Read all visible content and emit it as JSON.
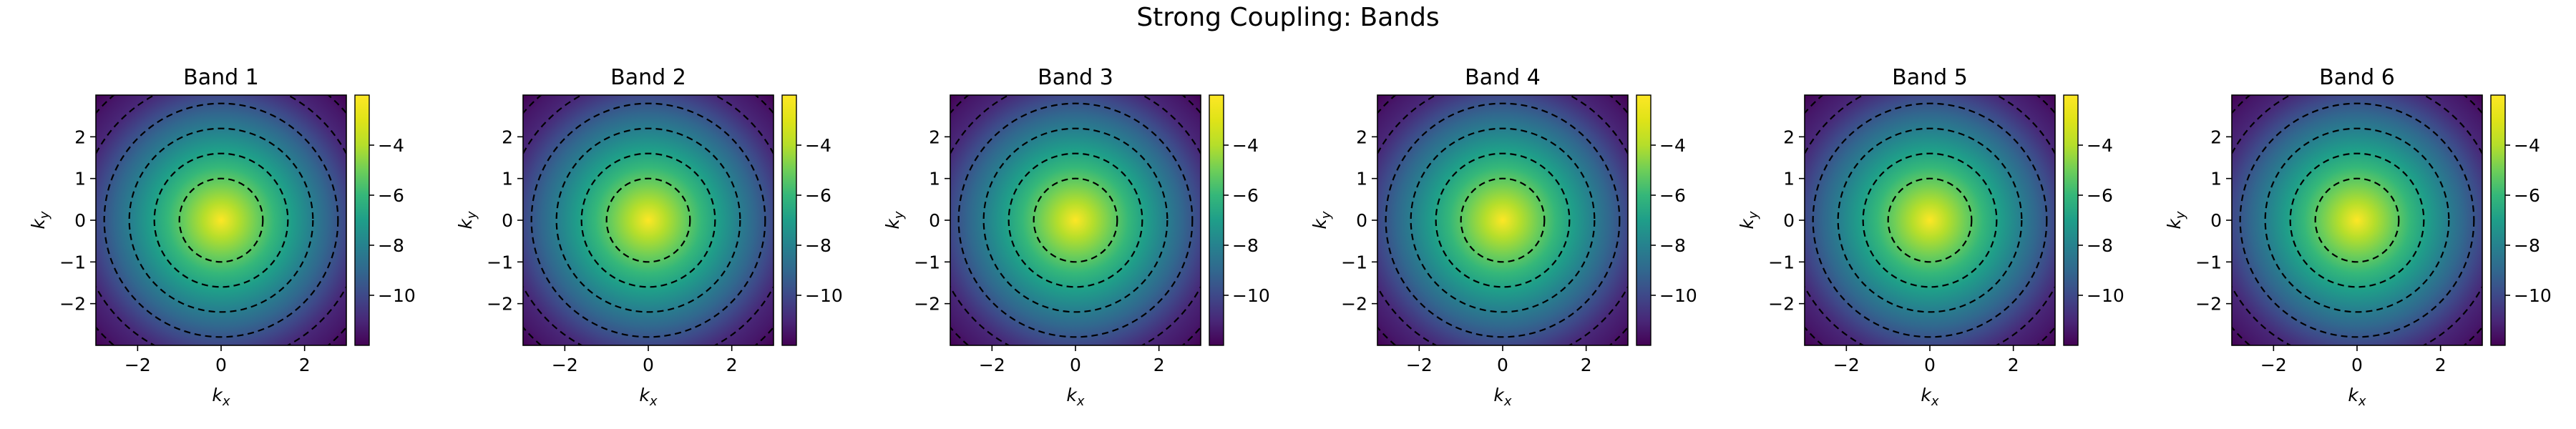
{
  "figure": {
    "suptitle": "Strong Coupling: Bands"
  },
  "chart_data": {
    "type": "heatmap",
    "title": "Strong Coupling: Bands",
    "colormap": "viridis",
    "contour_style": "black dashed",
    "panels": [
      {
        "title": "Band 1",
        "xlabel": "k",
        "xlabel_sub": "x",
        "ylabel": "k",
        "ylabel_sub": "y",
        "xlim": [
          -3,
          3
        ],
        "ylim": [
          -3,
          3
        ],
        "xticks": [
          -2,
          0,
          2
        ],
        "yticks": [
          -2,
          -1,
          0,
          1,
          2
        ],
        "zmin": -12,
        "zmax": -2,
        "colorbar_ticks": [
          -4,
          -6,
          -8,
          -10
        ],
        "contour_radii": [
          1.0,
          1.6,
          2.2,
          2.8,
          3.4,
          3.95
        ]
      },
      {
        "title": "Band 2",
        "xlabel": "k",
        "xlabel_sub": "x",
        "ylabel": "k",
        "ylabel_sub": "y",
        "xlim": [
          -3,
          3
        ],
        "ylim": [
          -3,
          3
        ],
        "xticks": [
          -2,
          0,
          2
        ],
        "yticks": [
          -2,
          -1,
          0,
          1,
          2
        ],
        "zmin": -12,
        "zmax": -2,
        "colorbar_ticks": [
          -4,
          -6,
          -8,
          -10
        ],
        "contour_radii": [
          1.0,
          1.6,
          2.2,
          2.8,
          3.4,
          3.95
        ]
      },
      {
        "title": "Band 3",
        "xlabel": "k",
        "xlabel_sub": "x",
        "ylabel": "k",
        "ylabel_sub": "y",
        "xlim": [
          -3,
          3
        ],
        "ylim": [
          -3,
          3
        ],
        "xticks": [
          -2,
          0,
          2
        ],
        "yticks": [
          -2,
          -1,
          0,
          1,
          2
        ],
        "zmin": -12,
        "zmax": -2,
        "colorbar_ticks": [
          -4,
          -6,
          -8,
          -10
        ],
        "contour_radii": [
          1.0,
          1.6,
          2.2,
          2.8,
          3.4,
          3.95
        ]
      },
      {
        "title": "Band 4",
        "xlabel": "k",
        "xlabel_sub": "x",
        "ylabel": "k",
        "ylabel_sub": "y",
        "xlim": [
          -3,
          3
        ],
        "ylim": [
          -3,
          3
        ],
        "xticks": [
          -2,
          0,
          2
        ],
        "yticks": [
          -2,
          -1,
          0,
          1,
          2
        ],
        "zmin": -12,
        "zmax": -2,
        "colorbar_ticks": [
          -4,
          -6,
          -8,
          -10
        ],
        "contour_radii": [
          1.0,
          1.6,
          2.2,
          2.8,
          3.4,
          3.95
        ]
      },
      {
        "title": "Band 5",
        "xlabel": "k",
        "xlabel_sub": "x",
        "ylabel": "k",
        "ylabel_sub": "y",
        "xlim": [
          -3,
          3
        ],
        "ylim": [
          -3,
          3
        ],
        "xticks": [
          -2,
          0,
          2
        ],
        "yticks": [
          -2,
          -1,
          0,
          1,
          2
        ],
        "zmin": -12,
        "zmax": -2,
        "colorbar_ticks": [
          -4,
          -6,
          -8,
          -10
        ],
        "contour_radii": [
          1.0,
          1.6,
          2.2,
          2.8,
          3.4,
          3.95
        ]
      },
      {
        "title": "Band 6",
        "xlabel": "k",
        "xlabel_sub": "x",
        "ylabel": "k",
        "ylabel_sub": "y",
        "xlim": [
          -3,
          3
        ],
        "ylim": [
          -3,
          3
        ],
        "xticks": [
          -2,
          0,
          2
        ],
        "yticks": [
          -2,
          -1,
          0,
          1,
          2
        ],
        "zmin": -12,
        "zmax": -2,
        "colorbar_ticks": [
          -4,
          -6,
          -8,
          -10
        ],
        "contour_radii": [
          1.0,
          1.6,
          2.2,
          2.8,
          3.4,
          3.95
        ]
      }
    ]
  }
}
